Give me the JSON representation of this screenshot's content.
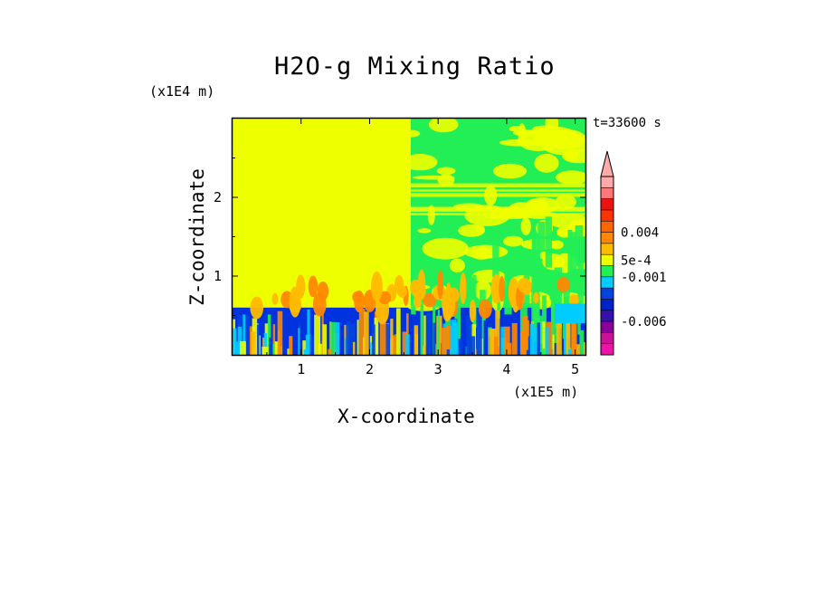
{
  "chart_data": {
    "type": "heatmap",
    "title": "H2O-g Mixing Ratio",
    "xlabel": "X-coordinate",
    "ylabel": "Z-coordinate",
    "x_unit": "(x1E5 m)",
    "y_unit": "(x1E4 m)",
    "annotation": "t=33600 s",
    "xlim": [
      0,
      5.15
    ],
    "ylim": [
      0,
      3.0
    ],
    "x_ticks": [
      1,
      2,
      3,
      4,
      5
    ],
    "x_tick_labels": [
      "1",
      "2",
      "3",
      "4",
      "5"
    ],
    "y_ticks": [
      1,
      2
    ],
    "y_tick_labels": [
      "1",
      "2"
    ],
    "regions": [
      {
        "name": "upper-left uniform",
        "x": [
          0,
          2.6
        ],
        "z": [
          0.6,
          3.0
        ],
        "color": "#eeff00"
      },
      {
        "name": "upper-right mixed",
        "x": [
          2.6,
          5.15
        ],
        "z": [
          0.6,
          3.0
        ],
        "color": "#22ee55"
      },
      {
        "name": "boundary layer",
        "x": [
          0,
          5.15
        ],
        "z": [
          0,
          0.6
        ],
        "color": "#0033dd"
      }
    ],
    "colorbar": {
      "extend": "max",
      "colors": [
        "#ee11aa",
        "#cc1199",
        "#880099",
        "#3311aa",
        "#0022cc",
        "#0044dd",
        "#00ccff",
        "#22ee55",
        "#eeff00",
        "#ffbb00",
        "#ff8800",
        "#ff6600",
        "#ff3300",
        "#ee1111",
        "#ff7777",
        "#ffaaaa"
      ],
      "tick_labels": [
        "0.004",
        "5e-4",
        "-0.001",
        "-0.006"
      ],
      "tick_levels": [
        11,
        8.5,
        7,
        3
      ]
    }
  },
  "labels": {
    "title": "H2O-g Mixing Ratio",
    "xlabel": "X-coordinate",
    "ylabel": "Z-coordinate",
    "x_unit": "(x1E5 m)",
    "y_unit": "(x1E4 m)",
    "timestamp": "t=33600 s"
  }
}
